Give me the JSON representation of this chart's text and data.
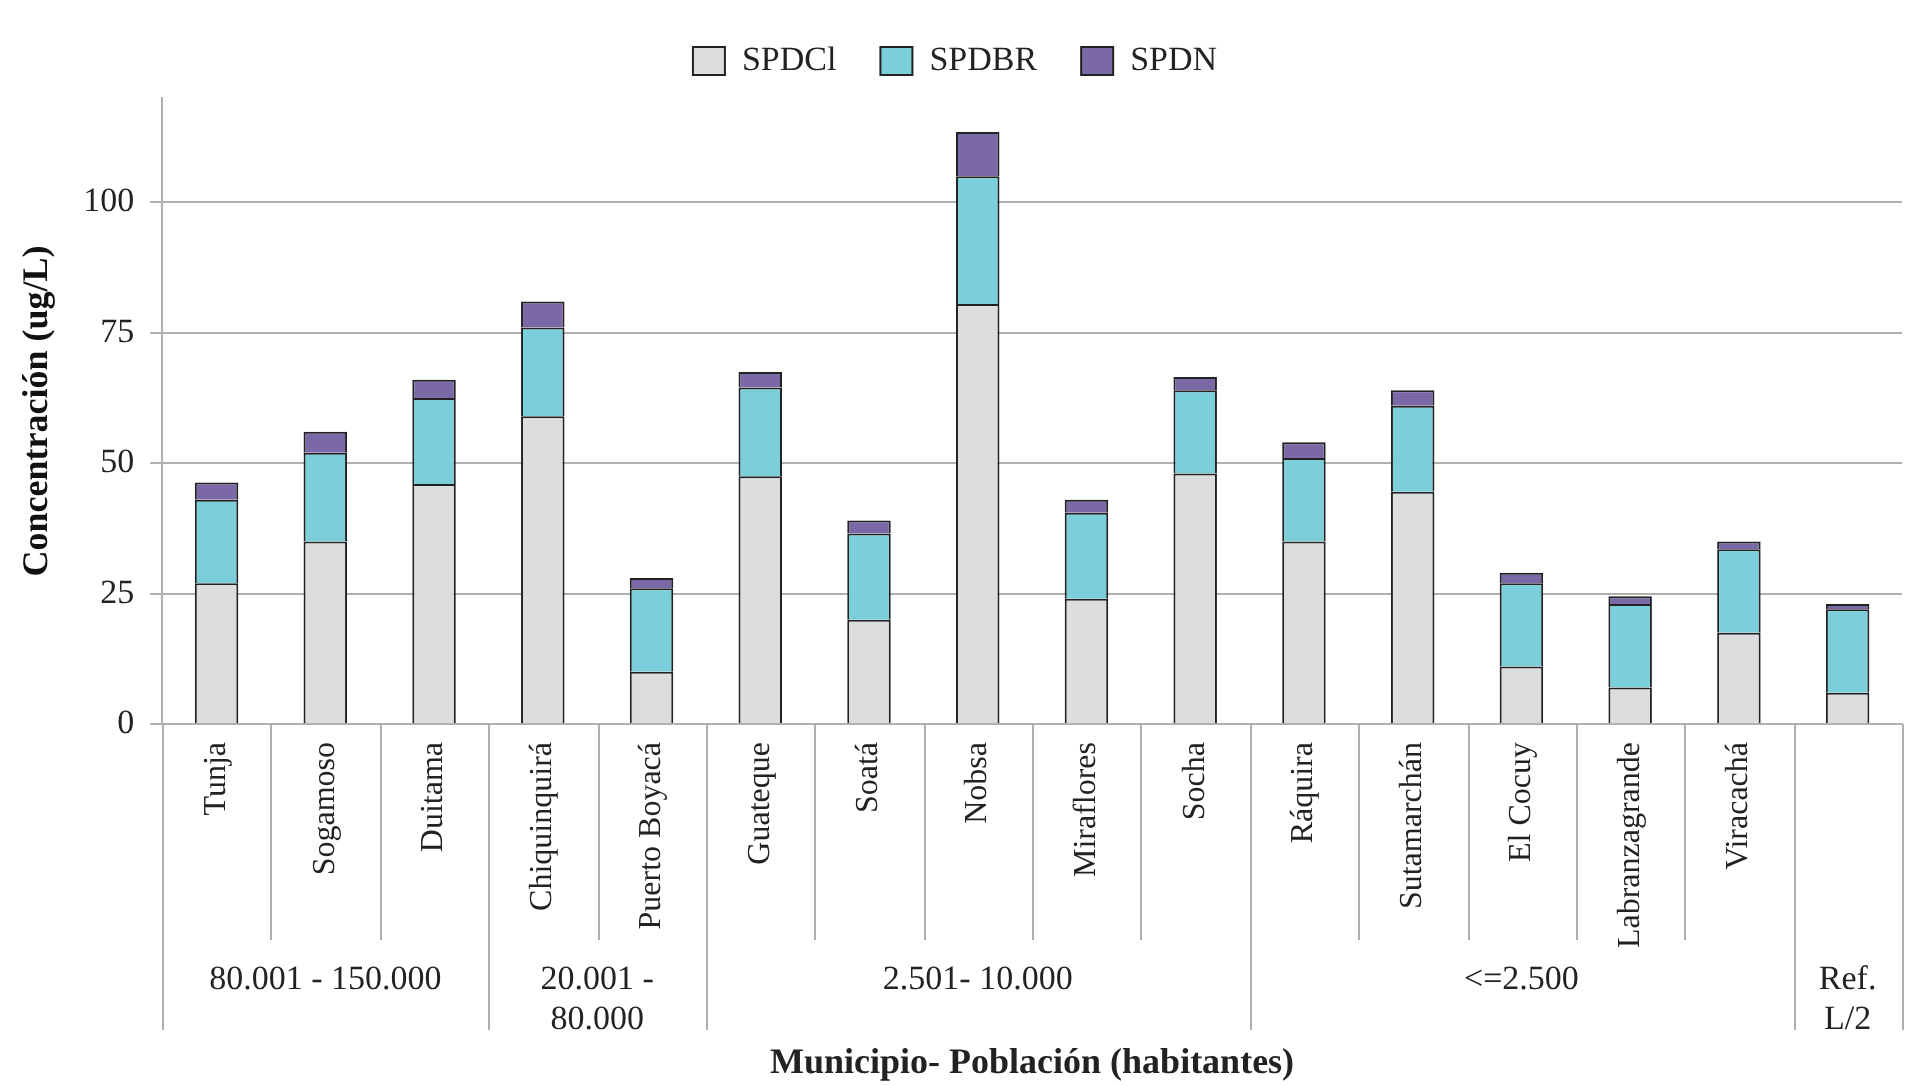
{
  "chart_data": {
    "type": "bar",
    "stacked": true,
    "ylabel": "Concentración (ug/L)",
    "xlabel": "Municipio- Población (habitantes)",
    "categories": [
      "Tunja",
      "Sogamoso",
      "Duitama",
      "Chiquinquirá",
      "Puerto Boyacá",
      "Guateque",
      "Soatá",
      "Nobsa",
      "Miraflores",
      "Socha",
      "Ráquira",
      "Sutamarchán",
      "El Cocuy",
      "Labranzagrande",
      "Viracachá",
      null
    ],
    "series": [
      {
        "name": "SPDCl",
        "color": "#dcdddf",
        "values": [
          27,
          35,
          46,
          59,
          10,
          47.5,
          20,
          80.5,
          24,
          48,
          35,
          44.5,
          11,
          7,
          17.5,
          6
        ]
      },
      {
        "name": "SPDBR",
        "color": "#7acfdb",
        "values": [
          16,
          17,
          16.5,
          17,
          16,
          17,
          16.5,
          24.5,
          16.5,
          16,
          16,
          16.5,
          16,
          16,
          16,
          16
        ]
      },
      {
        "name": "SPDN",
        "color": "#7b68a6",
        "values": [
          3.3,
          4,
          3.5,
          5,
          2,
          3,
          2.5,
          8.5,
          2.5,
          2.5,
          3,
          3,
          2,
          1.5,
          1.5,
          1
        ]
      }
    ],
    "annotations": [
      "80.001 - 150.000",
      "20.001 - 80.000",
      "2.501- 10.000",
      "<=2.500",
      "Ref. L/2"
    ],
    "ylim": [
      0,
      120
    ],
    "yticks": [
      0,
      25,
      50,
      75,
      100
    ],
    "grid": "y",
    "legend": "top"
  }
}
